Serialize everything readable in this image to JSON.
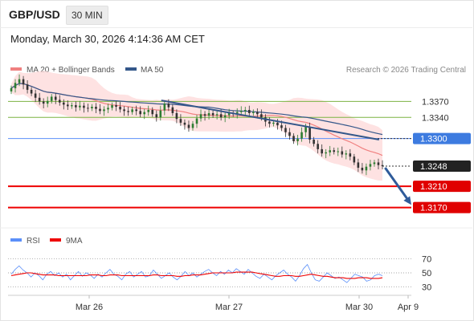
{
  "header": {
    "symbol": "GBP/USD",
    "timeframe": "30 MIN",
    "datetime": "Monday, March 30, 2026 4:14:36 AM CET"
  },
  "legend": {
    "ma20": "MA 20 + Bollinger Bands",
    "ma50": "MA 50",
    "source": "Research © 2026 Trading Central",
    "rsi": "RSI",
    "rsi9": "9MA"
  },
  "colors": {
    "up": "#2e7d32",
    "down": "#333333",
    "ma20": "#f08080",
    "bollinger": "#fdd8d8",
    "ma50": "#34578a",
    "support": "#ee0000",
    "resistance": "#7cb342",
    "pivot": "#5b8ff9",
    "trendline": "#34578a",
    "arrow": "#2f5b9a",
    "rsi_line": "#5b8ff9",
    "rsi_ma": "#ee0000"
  },
  "chart_data": [
    {
      "type": "line",
      "title": "",
      "x_labels": [
        "Mar 26",
        "Mar 27",
        "Mar 30",
        "Apr 9"
      ],
      "ylim": [
        1.313,
        1.341
      ],
      "grid": false,
      "legend_position": "top-left",
      "levels": [
        {
          "label": "1.3370",
          "value": 1.337,
          "kind": "resistance"
        },
        {
          "label": "1.3340",
          "value": 1.334,
          "kind": "resistance"
        },
        {
          "label": "1.3300",
          "value": 1.33,
          "kind": "pivot"
        },
        {
          "label": "1.3248",
          "value": 1.3248,
          "kind": "last"
        },
        {
          "label": "1.3210",
          "value": 1.321,
          "kind": "support"
        },
        {
          "label": "1.3170",
          "value": 1.317,
          "kind": "support"
        }
      ],
      "trendline": {
        "from": [
          0.38,
          1.3372
        ],
        "to": [
          0.92,
          1.3298
        ]
      },
      "forecast_arrow": {
        "from": [
          0.935,
          1.3245
        ],
        "to": [
          1.0,
          1.3175
        ]
      },
      "candles_close": [
        1.3395,
        1.3405,
        1.3412,
        1.3402,
        1.3392,
        1.3385,
        1.3377,
        1.337,
        1.3366,
        1.3371,
        1.3379,
        1.3373,
        1.3368,
        1.3364,
        1.3361,
        1.3363,
        1.3359,
        1.3362,
        1.3358,
        1.3357,
        1.336,
        1.3356,
        1.3352,
        1.3355,
        1.3358,
        1.3363,
        1.336,
        1.3355,
        1.3352,
        1.335,
        1.3355,
        1.3352,
        1.3346,
        1.335,
        1.3354,
        1.3346,
        1.334,
        1.3353,
        1.3366,
        1.3359,
        1.3348,
        1.3337,
        1.333,
        1.3326,
        1.332,
        1.3328,
        1.3338,
        1.3346,
        1.3343,
        1.3348,
        1.3344,
        1.3346,
        1.334,
        1.3344,
        1.3348,
        1.3346,
        1.335,
        1.3352,
        1.3354,
        1.3348,
        1.335,
        1.3346,
        1.334,
        1.3332,
        1.3328,
        1.333,
        1.3325,
        1.332,
        1.3312,
        1.3305,
        1.3295,
        1.33,
        1.3312,
        1.3322,
        1.3298,
        1.329,
        1.328,
        1.3272,
        1.3274,
        1.3278,
        1.3275,
        1.3276,
        1.327,
        1.3272,
        1.3266,
        1.3255,
        1.3245,
        1.324,
        1.3247,
        1.3252,
        1.3255,
        1.325,
        1.3248
      ]
    },
    {
      "type": "line",
      "title": "",
      "ylim": [
        20,
        80
      ],
      "ticks": [
        "70",
        "50",
        "30"
      ],
      "tick_values": [
        70,
        50,
        30
      ],
      "series": [
        {
          "name": "RSI",
          "values": [
            48,
            55,
            60,
            54,
            50,
            44,
            50,
            46,
            40,
            48,
            52,
            46,
            50,
            44,
            48,
            40,
            46,
            52,
            45,
            50,
            47,
            42,
            48,
            44,
            50,
            55,
            48,
            45,
            40,
            48,
            52,
            44,
            48,
            52,
            44,
            46,
            54,
            48,
            42,
            46,
            50,
            44,
            40,
            45,
            52,
            46,
            50,
            44,
            48,
            52,
            55,
            50,
            46,
            52,
            48,
            54,
            50,
            56,
            52,
            48,
            55,
            50,
            45,
            42,
            48,
            44,
            40,
            46,
            50,
            54,
            48,
            44,
            38,
            46,
            56,
            62,
            50,
            40,
            38,
            44,
            50,
            46,
            42,
            44,
            40,
            36,
            42,
            48,
            46,
            44,
            38,
            40,
            46,
            48,
            46
          ]
        },
        {
          "name": "9MA",
          "values": [
            46,
            47,
            48,
            49,
            50,
            50,
            49,
            48,
            47,
            47,
            47,
            47,
            46,
            46,
            46,
            46,
            46,
            46,
            46,
            46,
            47,
            47,
            47,
            46,
            46,
            47,
            47,
            47,
            46,
            46,
            46,
            46,
            46,
            46,
            46,
            46,
            47,
            47,
            46,
            46,
            46,
            46,
            45,
            45,
            46,
            46,
            47,
            47,
            47,
            48,
            49,
            50,
            50,
            50,
            50,
            50,
            50,
            51,
            51,
            51,
            51,
            51,
            50,
            49,
            48,
            47,
            46,
            45,
            45,
            46,
            46,
            46,
            45,
            45,
            46,
            47,
            48,
            47,
            46,
            45,
            45,
            44,
            43,
            43,
            43,
            42,
            42,
            42,
            43,
            43,
            43,
            42,
            42,
            42,
            43
          ]
        }
      ]
    }
  ]
}
